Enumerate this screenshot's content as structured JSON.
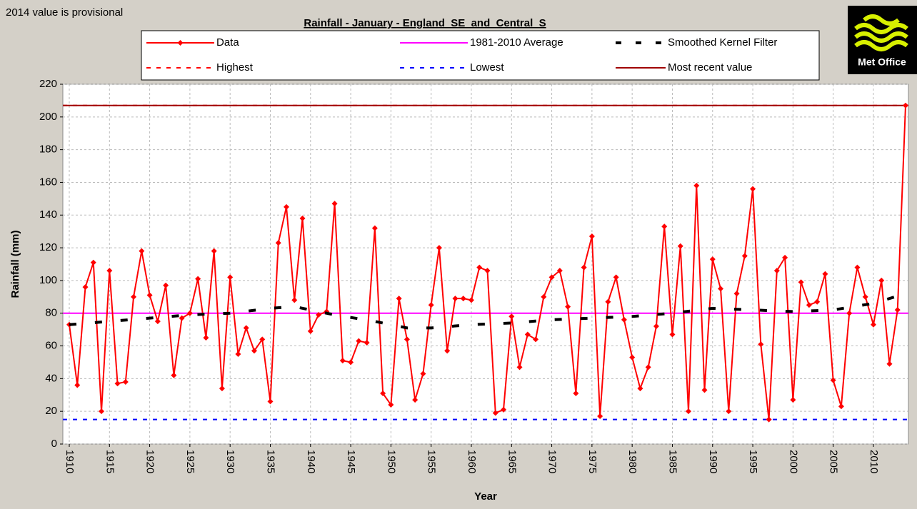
{
  "chart_data": {
    "type": "line",
    "title": "Rainfall - January - England_SE_and_Central_S",
    "note": "2014 value is provisional",
    "logo_text": "Met Office",
    "y_label": "Rainfall (mm)",
    "x_label": "Year",
    "x": [
      1910,
      1911,
      1912,
      1913,
      1914,
      1915,
      1916,
      1917,
      1918,
      1919,
      1920,
      1921,
      1922,
      1923,
      1924,
      1925,
      1926,
      1927,
      1928,
      1929,
      1930,
      1931,
      1932,
      1933,
      1934,
      1935,
      1936,
      1937,
      1938,
      1939,
      1940,
      1941,
      1942,
      1943,
      1944,
      1945,
      1946,
      1947,
      1948,
      1949,
      1950,
      1951,
      1952,
      1953,
      1954,
      1955,
      1956,
      1957,
      1958,
      1959,
      1960,
      1961,
      1962,
      1963,
      1964,
      1965,
      1966,
      1967,
      1968,
      1969,
      1970,
      1971,
      1972,
      1973,
      1974,
      1975,
      1976,
      1977,
      1978,
      1979,
      1980,
      1981,
      1982,
      1983,
      1984,
      1985,
      1986,
      1987,
      1988,
      1989,
      1990,
      1991,
      1992,
      1993,
      1994,
      1995,
      1996,
      1997,
      1998,
      1999,
      2000,
      2001,
      2002,
      2003,
      2004,
      2005,
      2006,
      2007,
      2008,
      2009,
      2010,
      2011,
      2012,
      2013,
      2014
    ],
    "xlim": [
      1910,
      2014
    ],
    "xticks": [
      1910,
      1915,
      1920,
      1925,
      1930,
      1935,
      1940,
      1945,
      1950,
      1955,
      1960,
      1965,
      1970,
      1975,
      1980,
      1985,
      1990,
      1995,
      2000,
      2005,
      2010
    ],
    "ylim": [
      0,
      220
    ],
    "yticks": [
      0,
      20,
      40,
      60,
      80,
      100,
      120,
      140,
      160,
      180,
      200,
      220
    ],
    "grid": true,
    "series": [
      {
        "name": "Data",
        "color": "#ff0000",
        "values": [
          73,
          36,
          96,
          111,
          20,
          106,
          37,
          38,
          90,
          118,
          91,
          75,
          97,
          42,
          77,
          80,
          101,
          65,
          118,
          34,
          102,
          55,
          71,
          57,
          64,
          26,
          123,
          145,
          88,
          138,
          69,
          79,
          81,
          147,
          51,
          50,
          63,
          62,
          132,
          31,
          24,
          89,
          64,
          27,
          43,
          85,
          120,
          57,
          89,
          89,
          88,
          108,
          106,
          19,
          21,
          78,
          47,
          67,
          64,
          90,
          102,
          106,
          84,
          31,
          108,
          127,
          17,
          87,
          102,
          76,
          53,
          34,
          47,
          72,
          133,
          67,
          121,
          20,
          158,
          33,
          113,
          95,
          20,
          92,
          115,
          156,
          61,
          15,
          106,
          114,
          27,
          99,
          85,
          87,
          104,
          39,
          23,
          80,
          108,
          90,
          73,
          100,
          49,
          82,
          207
        ]
      },
      {
        "name": "Smoothed Kernel Filter",
        "color": "#000000",
        "x": [
          1910,
          1915,
          1920,
          1925,
          1930,
          1935,
          1938,
          1943,
          1948,
          1952,
          1955,
          1960,
          1965,
          1970,
          1975,
          1980,
          1985,
          1990,
          1995,
          2000,
          2005,
          2010,
          2014
        ],
        "values": [
          73,
          75,
          77,
          79,
          80,
          83,
          84,
          79,
          75,
          71,
          71,
          73,
          74,
          76,
          77,
          78,
          80,
          83,
          82,
          81,
          82,
          86,
          92
        ]
      }
    ],
    "reference_lines": [
      {
        "name": "1981-2010 Average",
        "value": 80,
        "color": "#ff00ff",
        "style": "solid"
      },
      {
        "name": "Highest",
        "value": 207,
        "color": "#ff0000",
        "style": "dashed"
      },
      {
        "name": "Lowest",
        "value": 15,
        "color": "#0000ff",
        "style": "dashed"
      },
      {
        "name": "Most recent value",
        "value": 207,
        "color": "#a00000",
        "style": "solid"
      }
    ]
  }
}
